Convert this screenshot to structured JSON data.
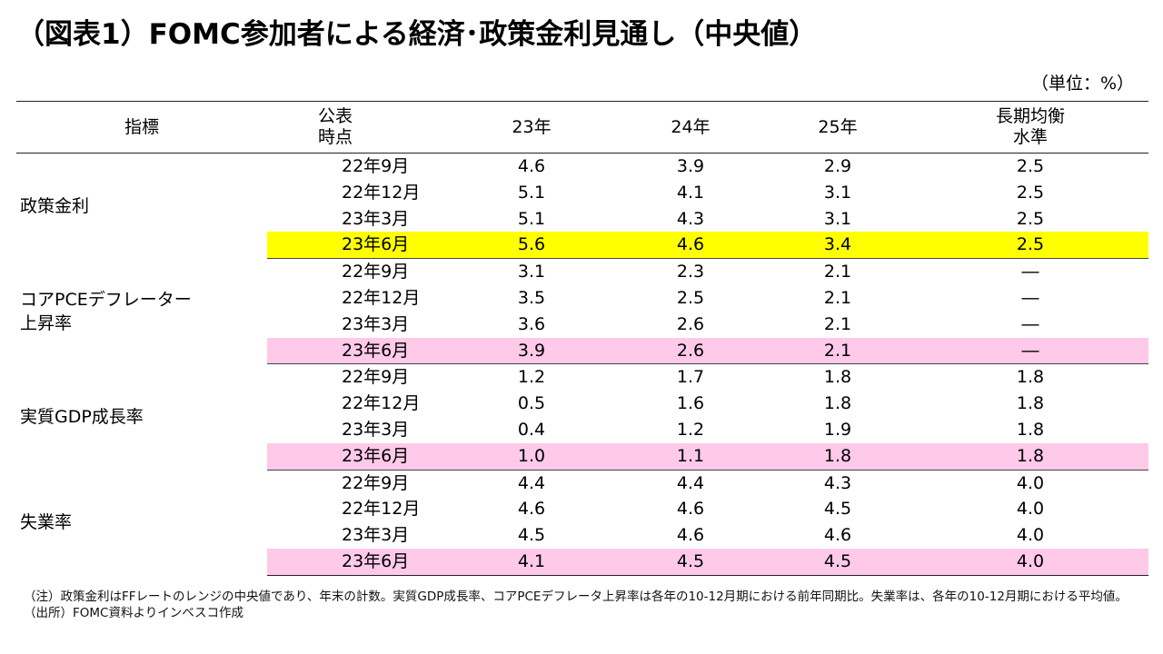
{
  "title": "（図表1）FOMC参加者による経済･政策金利見通し（中央値）",
  "unit": "（単位：%）",
  "headers": {
    "indicator": "指標",
    "date_line1": "公表",
    "date_line2": "時点",
    "y23": "23年",
    "y24": "24年",
    "y25": "25年",
    "longrun_line1": "長期均衡",
    "longrun_line2": "水準"
  },
  "groups": [
    {
      "label_line1": "政策金利",
      "label_line2": "",
      "highlight_color": "#ffff00",
      "rows": [
        {
          "date": "22年9月",
          "y23": "4.6",
          "y24": "3.9",
          "y25": "2.9",
          "lr": "2.5"
        },
        {
          "date": "22年12月",
          "y23": "5.1",
          "y24": "4.1",
          "y25": "3.1",
          "lr": "2.5"
        },
        {
          "date": "23年3月",
          "y23": "5.1",
          "y24": "4.3",
          "y25": "3.1",
          "lr": "2.5"
        },
        {
          "date": "23年6月",
          "y23": "5.6",
          "y24": "4.6",
          "y25": "3.4",
          "lr": "2.5"
        }
      ]
    },
    {
      "label_line1": "コアPCEデフレーター",
      "label_line2": "上昇率",
      "highlight_color": "#ffc9e9",
      "rows": [
        {
          "date": "22年9月",
          "y23": "3.1",
          "y24": "2.3",
          "y25": "2.1",
          "lr": "―"
        },
        {
          "date": "22年12月",
          "y23": "3.5",
          "y24": "2.5",
          "y25": "2.1",
          "lr": "―"
        },
        {
          "date": "23年3月",
          "y23": "3.6",
          "y24": "2.6",
          "y25": "2.1",
          "lr": "―"
        },
        {
          "date": "23年6月",
          "y23": "3.9",
          "y24": "2.6",
          "y25": "2.1",
          "lr": "―"
        }
      ]
    },
    {
      "label_line1": "実質GDP成長率",
      "label_line2": "",
      "highlight_color": "#ffc9e9",
      "rows": [
        {
          "date": "22年9月",
          "y23": "1.2",
          "y24": "1.7",
          "y25": "1.8",
          "lr": "1.8"
        },
        {
          "date": "22年12月",
          "y23": "0.5",
          "y24": "1.6",
          "y25": "1.8",
          "lr": "1.8"
        },
        {
          "date": "23年3月",
          "y23": "0.4",
          "y24": "1.2",
          "y25": "1.9",
          "lr": "1.8"
        },
        {
          "date": "23年6月",
          "y23": "1.0",
          "y24": "1.1",
          "y25": "1.8",
          "lr": "1.8"
        }
      ]
    },
    {
      "label_line1": "失業率",
      "label_line2": "",
      "highlight_color": "#ffc9e9",
      "rows": [
        {
          "date": "22年9月",
          "y23": "4.4",
          "y24": "4.4",
          "y25": "4.3",
          "lr": "4.0"
        },
        {
          "date": "22年12月",
          "y23": "4.6",
          "y24": "4.6",
          "y25": "4.5",
          "lr": "4.0"
        },
        {
          "date": "23年3月",
          "y23": "4.5",
          "y24": "4.6",
          "y25": "4.6",
          "lr": "4.0"
        },
        {
          "date": "23年6月",
          "y23": "4.1",
          "y24": "4.5",
          "y25": "4.5",
          "lr": "4.0"
        }
      ]
    }
  ],
  "notes": {
    "note_label": "（注）",
    "note_text": "政策金利はFFレートのレンジの中央値であり、年末の計数。実質GDP成長率、コアPCEデフレータ上昇率は各年の10-12月期における前年同期比。失業率は、各年の10-12月期における平均値。",
    "source_label": "（出所）",
    "source_text": "FOMC資料よりインベスコ作成"
  }
}
